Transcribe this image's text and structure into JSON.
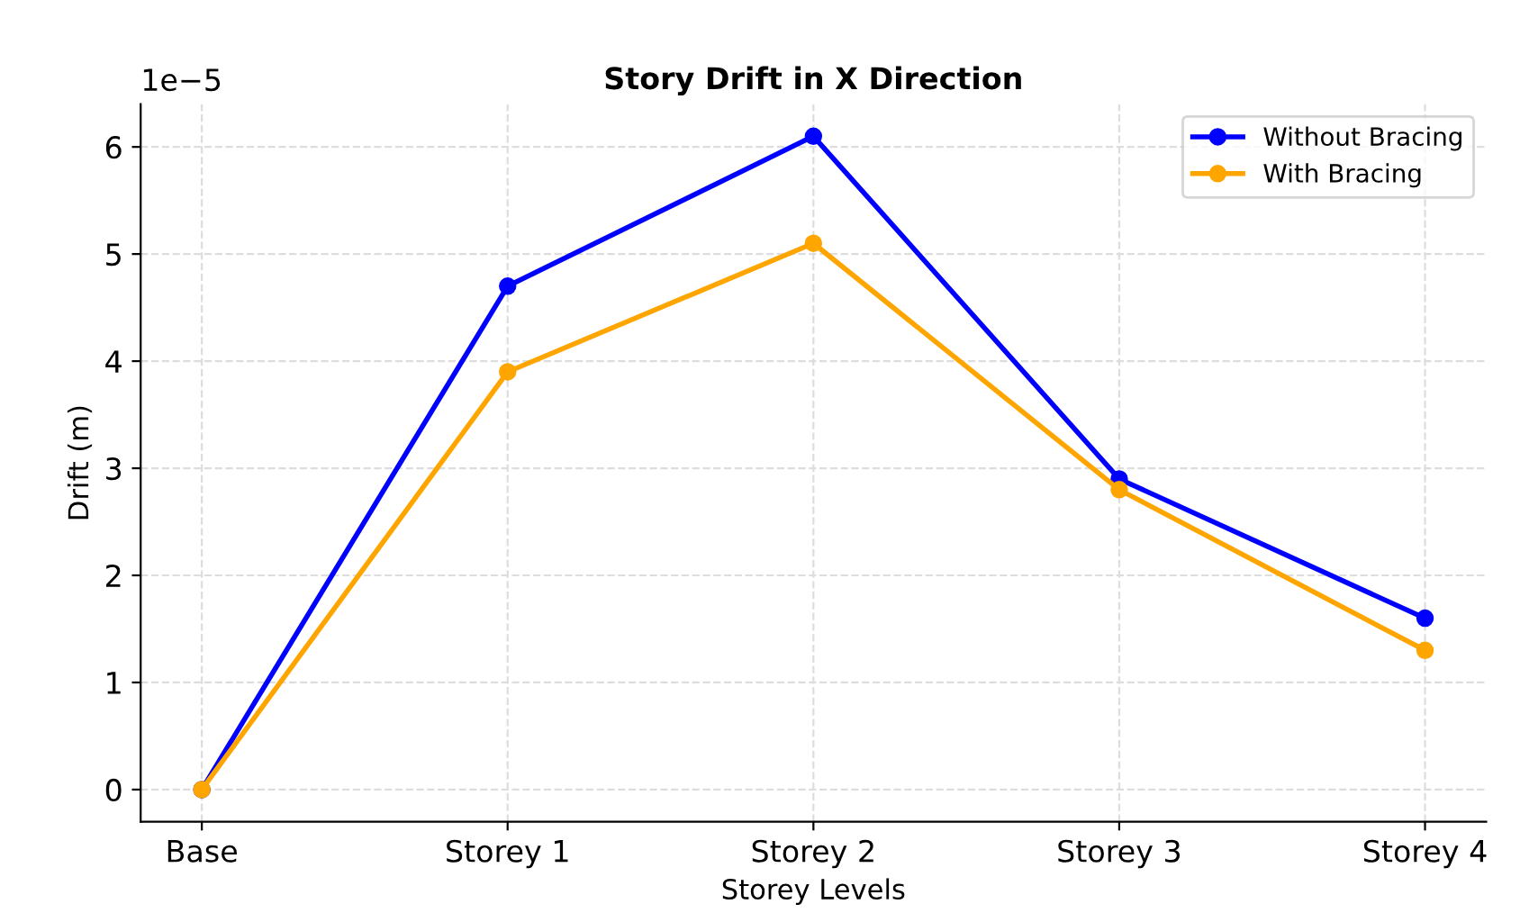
{
  "chart_data": {
    "type": "line",
    "title": "Story Drift in X Direction",
    "xlabel": "Storey Levels",
    "ylabel": "Drift (m)",
    "categories": [
      "Base",
      "Storey 1",
      "Storey 2",
      "Storey 3",
      "Storey 4"
    ],
    "series": [
      {
        "name": "Without Bracing",
        "color": "#0000ff",
        "values": [
          0,
          4.7,
          6.1,
          2.9,
          1.6
        ]
      },
      {
        "name": "With Bracing",
        "color": "#ffa500",
        "values": [
          0,
          3.9,
          5.1,
          2.8,
          1.3
        ]
      }
    ],
    "ylim": [
      -0.3,
      6.4
    ],
    "yticks": [
      0,
      1,
      2,
      3,
      4,
      5,
      6
    ],
    "annotations": [
      "1e−5"
    ],
    "grid": true,
    "legend": "top right",
    "marker": "circle",
    "line_style": "solid"
  }
}
